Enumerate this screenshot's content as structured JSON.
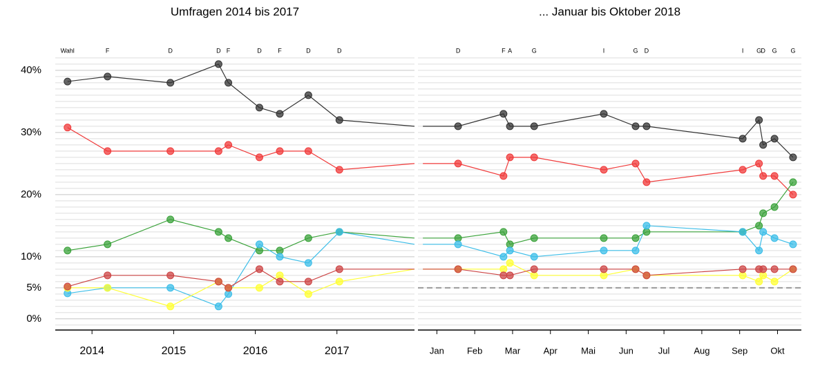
{
  "chart_data": [
    {
      "type": "line",
      "title": "Umfragen 2014 bis 2017",
      "x": [
        2013.7,
        2014.19,
        2014.96,
        2015.55,
        2015.67,
        2016.05,
        2016.3,
        2016.65,
        2017.03,
        2017.95
      ],
      "point_labels": [
        "Wahl",
        "F",
        "D",
        "D",
        "F",
        "D",
        "F",
        "D",
        "D",
        null
      ],
      "xlim": [
        2013.55,
        2017.95
      ],
      "xticks": [
        2014,
        2015,
        2016,
        2017
      ],
      "ylim": [
        -1.8,
        42.1
      ],
      "yticks": [
        {
          "value": 0,
          "label": "0%"
        },
        {
          "value": 5,
          "label": "5%"
        },
        {
          "value": 10,
          "label": "10%"
        },
        {
          "value": 20,
          "label": "20%"
        },
        {
          "value": 30,
          "label": "30%"
        },
        {
          "value": 40,
          "label": "40%"
        }
      ],
      "series": [
        {
          "color": "#333333",
          "values": [
            38.2,
            39,
            38,
            41,
            38,
            34,
            33,
            36,
            32,
            31
          ]
        },
        {
          "color": "#f03a3a",
          "values": [
            30.8,
            27,
            27,
            27,
            28,
            26,
            27,
            27,
            24,
            25
          ]
        },
        {
          "color": "#3aa23a",
          "values": [
            11,
            12,
            16,
            14,
            13,
            11,
            11,
            13,
            14,
            13
          ]
        },
        {
          "color": "#3bbde8",
          "values": [
            4.1,
            5,
            5,
            2,
            4,
            12,
            10,
            9,
            14,
            12
          ]
        },
        {
          "color": "#ffff33",
          "values": [
            5,
            5,
            2,
            6,
            5,
            5,
            7,
            4,
            6,
            8
          ]
        },
        {
          "color": "#cc4444",
          "values": [
            5.2,
            7,
            7,
            6,
            5,
            8,
            6,
            6,
            8,
            8
          ]
        }
      ]
    },
    {
      "type": "line",
      "title": "... Januar bis Oktober 2018",
      "x": [
        0.13,
        1.06,
        2.26,
        2.43,
        3.07,
        4.91,
        5.75,
        6.04,
        8.58,
        9.01,
        9.12,
        9.42,
        9.91
      ],
      "point_labels": [
        null,
        "D",
        "F",
        "A",
        "G",
        "I",
        "G",
        "D",
        "I",
        "G",
        "D",
        "G",
        "G"
      ],
      "xlim": [
        0,
        10.13
      ],
      "xticks": [
        {
          "value": 0.5,
          "label": "Jan"
        },
        {
          "value": 1.5,
          "label": "Feb"
        },
        {
          "value": 2.5,
          "label": "Mar"
        },
        {
          "value": 3.5,
          "label": "Apr"
        },
        {
          "value": 4.5,
          "label": "Mai"
        },
        {
          "value": 5.5,
          "label": "Jun"
        },
        {
          "value": 6.5,
          "label": "Jul"
        },
        {
          "value": 7.5,
          "label": "Aug"
        },
        {
          "value": 8.5,
          "label": "Sep"
        },
        {
          "value": 9.5,
          "label": "Okt"
        }
      ],
      "ylim": [
        -1.8,
        42.1
      ],
      "hline": 5,
      "series": [
        {
          "color": "#333333",
          "values": [
            31,
            31,
            33,
            31,
            31,
            33,
            31,
            31,
            29,
            32,
            28,
            29,
            26
          ]
        },
        {
          "color": "#f03a3a",
          "values": [
            25,
            25,
            23,
            26,
            26,
            24,
            25,
            22,
            24,
            25,
            23,
            23,
            20
          ]
        },
        {
          "color": "#3aa23a",
          "values": [
            13,
            13,
            14,
            12,
            13,
            13,
            13,
            14,
            14,
            15,
            17,
            18,
            22
          ]
        },
        {
          "color": "#3bbde8",
          "values": [
            12,
            12,
            10,
            11,
            10,
            11,
            11,
            15,
            14,
            11,
            14,
            13,
            12
          ]
        },
        {
          "color": "#ffff33",
          "values": [
            8,
            8,
            8,
            9,
            7,
            7,
            8,
            7,
            7,
            6,
            7,
            6,
            8
          ]
        },
        {
          "color": "#cc4444",
          "values": [
            8,
            8,
            7,
            7,
            8,
            8,
            8,
            7,
            8,
            8,
            8,
            8,
            8
          ]
        }
      ]
    }
  ]
}
